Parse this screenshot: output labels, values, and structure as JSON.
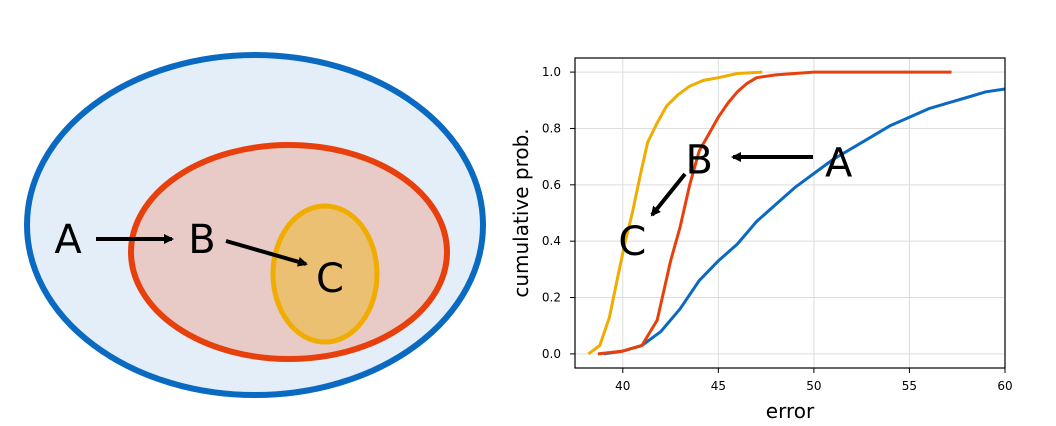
{
  "diagram": {
    "labels": {
      "a": "A",
      "b": "B",
      "c": "C"
    },
    "colors": {
      "outer_fill": "#e4eef8",
      "outer_stroke": "#0a6ac2",
      "middle_fill": "#e8cac6",
      "middle_stroke": "#e8400c",
      "inner_fill": "#ecc072",
      "inner_stroke": "#f0ac00"
    }
  },
  "chart_data": {
    "type": "line",
    "title": "",
    "xlabel": "error",
    "ylabel": "cumulative prob.",
    "xlim": [
      37.5,
      60
    ],
    "ylim": [
      -0.05,
      1.05
    ],
    "xticks": [
      40,
      45,
      50,
      55,
      60
    ],
    "yticks": [
      0.0,
      0.2,
      0.4,
      0.6,
      0.8,
      1.0
    ],
    "xtick_labels": [
      "40",
      "45",
      "50",
      "55",
      "60"
    ],
    "ytick_labels": [
      "0.0",
      "0.2",
      "0.4",
      "0.6",
      "0.8",
      "1.0"
    ],
    "grid": true,
    "series": [
      {
        "name": "A",
        "color": "#0a6ac2",
        "x": [
          39.0,
          40.0,
          41.0,
          42.0,
          43.0,
          44.0,
          45.0,
          46.0,
          47.0,
          48.0,
          49.0,
          50.0,
          51.0,
          52.0,
          53.0,
          54.0,
          55.0,
          56.0,
          57.0,
          58.0,
          59.0,
          60.0
        ],
        "y": [
          0.0,
          0.01,
          0.03,
          0.08,
          0.16,
          0.26,
          0.33,
          0.39,
          0.47,
          0.53,
          0.59,
          0.64,
          0.69,
          0.73,
          0.77,
          0.81,
          0.84,
          0.87,
          0.89,
          0.91,
          0.93,
          0.94
        ]
      },
      {
        "name": "B",
        "color": "#e8400c",
        "x": [
          38.7,
          40.0,
          41.0,
          41.8,
          42.5,
          43.0,
          43.5,
          44.0,
          44.5,
          45.0,
          45.5,
          46.0,
          46.5,
          47.0,
          48.0,
          49.0,
          50.0,
          52.0,
          55.0,
          57.2
        ],
        "y": [
          0.0,
          0.01,
          0.03,
          0.12,
          0.33,
          0.45,
          0.6,
          0.72,
          0.78,
          0.84,
          0.89,
          0.93,
          0.96,
          0.98,
          0.99,
          0.995,
          1.0,
          1.0,
          1.0,
          1.0
        ],
        "annotation": {
          "label": "B",
          "x": 44.0,
          "y": 0.69
        }
      },
      {
        "name": "C",
        "color": "#f0ac00",
        "x": [
          38.2,
          38.8,
          39.3,
          39.7,
          40.1,
          40.5,
          40.9,
          41.3,
          41.8,
          42.3,
          42.9,
          43.5,
          44.2,
          45.0,
          46.0,
          47.3
        ],
        "y": [
          0.0,
          0.03,
          0.13,
          0.26,
          0.39,
          0.5,
          0.63,
          0.75,
          0.82,
          0.88,
          0.92,
          0.95,
          0.97,
          0.98,
          0.995,
          1.0
        ],
        "annotation": {
          "label": "C",
          "x": 40.5,
          "y": 0.4
        }
      }
    ],
    "annotations": [
      {
        "label": "A",
        "x": 51.3,
        "y": 0.68
      }
    ]
  }
}
